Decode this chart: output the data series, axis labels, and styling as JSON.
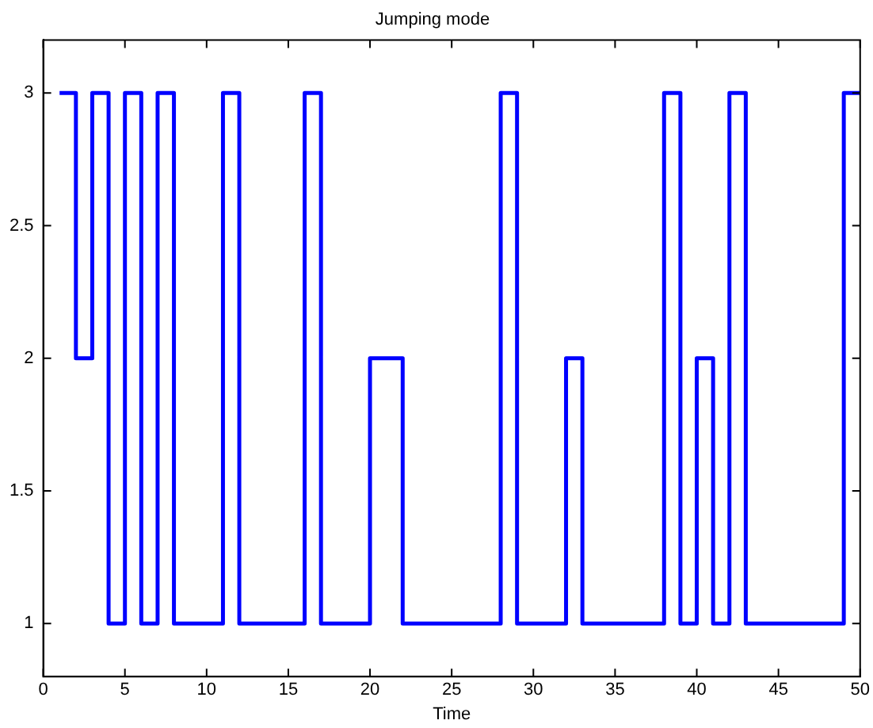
{
  "chart_data": {
    "type": "step",
    "title": "Jumping mode",
    "xlabel": "Time",
    "x": [
      1,
      2,
      3,
      4,
      5,
      6,
      7,
      8,
      9,
      10,
      11,
      12,
      13,
      14,
      15,
      16,
      17,
      18,
      19,
      20,
      21,
      22,
      23,
      24,
      25,
      26,
      27,
      28,
      29,
      30,
      31,
      32,
      33,
      34,
      35,
      36,
      37,
      38,
      39,
      40,
      41,
      42,
      43,
      44,
      45,
      46,
      47,
      48,
      49,
      50
    ],
    "series": [
      {
        "color": "#0000ff",
        "values": [
          3,
          2,
          3,
          1,
          3,
          1,
          3,
          1,
          1,
          1,
          3,
          1,
          1,
          1,
          1,
          3,
          1,
          1,
          1,
          2,
          2,
          1,
          1,
          1,
          1,
          1,
          1,
          3,
          1,
          1,
          1,
          2,
          1,
          1,
          1,
          1,
          1,
          3,
          1,
          2,
          1,
          3,
          1,
          1,
          1,
          1,
          1,
          1,
          3,
          3
        ]
      }
    ],
    "xlim": [
      0,
      50
    ],
    "xticks": [
      0,
      5,
      10,
      15,
      20,
      25,
      30,
      35,
      40,
      45,
      50
    ],
    "ylim": [
      0.8,
      3.2
    ],
    "yticks": [
      1,
      1.5,
      2,
      2.5,
      3
    ],
    "grid": false,
    "legend": false,
    "marker": "none",
    "line_style": "solid"
  }
}
